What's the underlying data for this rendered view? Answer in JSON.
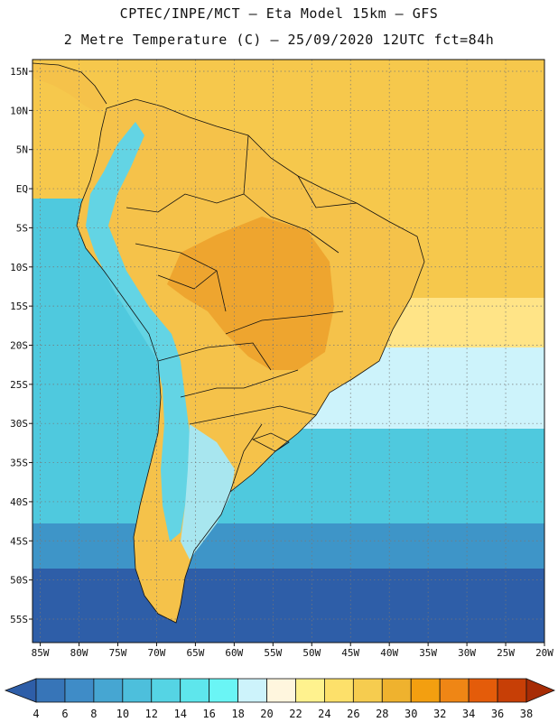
{
  "title": {
    "line1": "CPTEC/INPE/MCT —  Eta Model 15km — GFS",
    "line2": "2 Metre Temperature (C) — 25/09/2020 12UTC fct=84h"
  },
  "axes": {
    "lat_labels": [
      "15N",
      "10N",
      "5N",
      "EQ",
      "5S",
      "10S",
      "15S",
      "20S",
      "25S",
      "30S",
      "35S",
      "40S",
      "45S",
      "50S",
      "55S"
    ],
    "lon_labels": [
      "85W",
      "80W",
      "75W",
      "70W",
      "65W",
      "60W",
      "55W",
      "50W",
      "45W",
      "40W",
      "35W",
      "30W",
      "25W",
      "20W"
    ],
    "lat_values": [
      15,
      10,
      5,
      0,
      -5,
      -10,
      -15,
      -20,
      -25,
      -30,
      -35,
      -40,
      -45,
      -50,
      -55
    ],
    "lon_values": [
      -85,
      -80,
      -75,
      -70,
      -65,
      -60,
      -55,
      -50,
      -45,
      -40,
      -35,
      -30,
      -25,
      -20
    ],
    "lat_range": [
      -58,
      16.5
    ],
    "lon_range": [
      -86,
      -20
    ]
  },
  "colorbar": {
    "labels": [
      "4",
      "6",
      "8",
      "10",
      "12",
      "14",
      "16",
      "18",
      "20",
      "22",
      "24",
      "26",
      "28",
      "30",
      "32",
      "34",
      "36",
      "38"
    ],
    "colors": [
      "#2e5ea8",
      "#3775b8",
      "#3f8cc7",
      "#46a6d2",
      "#4dbfdc",
      "#55d4e4",
      "#5ee6ec",
      "#6af5f5",
      "#cdf3fb",
      "#fff6de",
      "#fff28e",
      "#fde06a",
      "#f6cc4f",
      "#efb22e",
      "#f39f10",
      "#ef8615",
      "#e45c0a",
      "#c73f06",
      "#a72c05"
    ]
  },
  "regions": {
    "land_color": "#f5c24a",
    "interior_hot_color": "#eea52f",
    "andes_cold_color": "#63d4e4",
    "patagonia_color": "#a8e6ef",
    "tropical_ocean_color": "#f6c84c",
    "warm_ocean_color": "#ffe487",
    "subtropical_ocean_color": "#cdf3fb",
    "temperate_ocean_color": "#4fc9de",
    "cool_ocean_color": "#3e95c8",
    "cold_ocean_color": "#2e5ea8"
  }
}
